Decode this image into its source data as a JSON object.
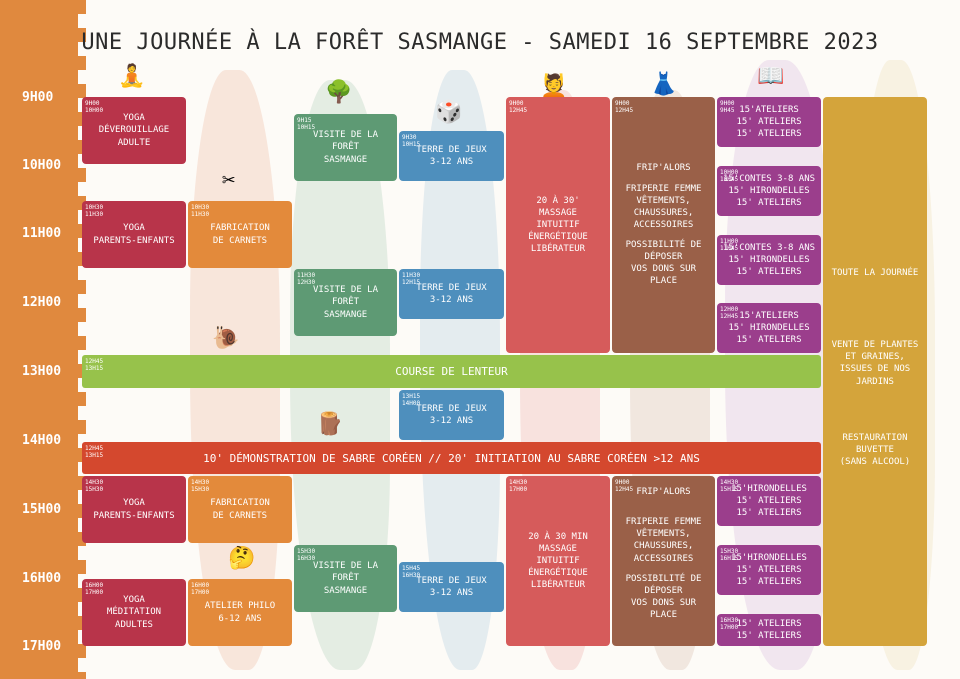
{
  "title": "UNE JOURNÉE À LA FORÊT SASMANGE - SAMEDI 16 SEPTEMBRE 2023",
  "hours": [
    "9H00",
    "10H00",
    "11H00",
    "12H00",
    "13H00",
    "14H00",
    "15H00",
    "16H00",
    "17H00"
  ],
  "activities": {
    "yoga1": {
      "time": "9H00\n10H00",
      "label": "YOGA\nDÉVEROUILLAGE\nADULTE"
    },
    "yoga2": {
      "time": "10H30\n11H30",
      "label": "YOGA\nPARENTS-ENFANTS"
    },
    "fab1": {
      "time": "10H30\n11H30",
      "label": "FABRICATION\nDE CARNETS"
    },
    "visite1": {
      "time": "9H15\n10H15",
      "label": "VISITE DE LA\nFORÊT\nSASMANGE"
    },
    "terre1": {
      "time": "9H30\n10H15",
      "label": "TERRE DE JEUX\n3-12 ANS"
    },
    "massage1": {
      "time": "9H00\n12H45",
      "label": "20 À 30'\nMASSAGE\nINTUITIF\nÉNERGÉTIQUE\nLIBÉRATEUR"
    },
    "frip1": {
      "time": "9H00\n12H45",
      "title": "FRIP'ALORS",
      "desc": "FRIPERIE FEMME\nVÊTEMENTS,\nCHAUSSURES,\nACCESSOIRES",
      "note": "POSSIBILITÉ DE DÉPOSER\nVOS DONS SUR PLACE"
    },
    "atel1": {
      "time": "9H00\n9H45",
      "label": "15'ATELIERS\n15' ATELIERS\n15' ATELIERS"
    },
    "atel2": {
      "time": "10H00\n10H45",
      "label": "15'CONTES 3-8 ANS\n15' HIRONDELLES\n15' ATELIERS"
    },
    "atel3": {
      "time": "11H00\n11H45",
      "label": "15'CONTES 3-8 ANS\n15' HIRONDELLES\n15' ATELIERS"
    },
    "atel4": {
      "time": "12H00\n12H45",
      "label": "15'ATELIERS\n15' HIRONDELLES\n15' ATELIERS"
    },
    "visite2": {
      "time": "11H30\n12H30",
      "label": "VISITE DE LA\nFORÊT\nSASMANGE"
    },
    "terre2": {
      "time": "11H30\n12H15",
      "label": "TERRE DE JEUX\n3-12 ANS"
    },
    "course": {
      "time": "12H45\n13H15",
      "label": "COURSE DE LENTEUR"
    },
    "terre3": {
      "time": "13H15\n14H00",
      "label": "TERRE DE JEUX\n3-12 ANS"
    },
    "sabre": {
      "time": "12H45\n13H15",
      "label": "10' DÉMONSTRATION DE SABRE CORÉEN // 20' INITIATION AU SABRE CORÉEN >12 ANS"
    },
    "yoga3": {
      "time": "14H30\n15H30",
      "label": "YOGA\nPARENTS-ENFANTS"
    },
    "fab2": {
      "time": "14H30\n15H30",
      "label": "FABRICATION\nDE CARNETS"
    },
    "massage2": {
      "time": "14H30\n17H00",
      "label": "20 À 30 MIN\nMASSAGE\nINTUITIF\nÉNERGÉTIQUE\nLIBÉRATEUR"
    },
    "frip2": {
      "time": "9H00\n12H45",
      "title": "FRIP'ALORS",
      "desc": "FRIPERIE FEMME\nVÊTEMENTS,\nCHAUSSURES,\nACCESSOIRES",
      "note": "POSSIBILITÉ DE DÉPOSER\nVOS DONS SUR PLACE"
    },
    "atel5": {
      "time": "14H30\n15H15",
      "label": "15'HIRONDELLES\n15' ATELIERS\n15' ATELIERS"
    },
    "atel6": {
      "time": "15H30\n16H15",
      "label": "15'HIRONDELLES\n15' ATELIERS\n15' ATELIERS"
    },
    "atel7": {
      "time": "16H30\n17H00",
      "label": "15' ATELIERS\n15' ATELIERS"
    },
    "visite3": {
      "time": "15H30\n16H30",
      "label": "VISITE DE LA\nFORÊT\nSASMANGE"
    },
    "terre4": {
      "time": "15H45\n16H30",
      "label": "TERRE DE JEUX\n3-12 ANS"
    },
    "yoga4": {
      "time": "16H00\n17H00",
      "label": "YOGA\nMÉDITATION\nADULTES"
    },
    "philo": {
      "time": "16H00\n17H00",
      "label": "ATELIER PHILO\n6-12 ANS"
    }
  },
  "sidebar": {
    "allday": "TOUTE LA JOURNÉE",
    "plants": "VENTE DE PLANTES\nET GRAINES,\nISSUES DE NOS JARDINS",
    "food": "RESTAURATION\nBUVETTE\n(SANS ALCOOL)"
  },
  "colors": {
    "red": "#b8344a",
    "orange": "#e38a3b",
    "green": "#5e9a74",
    "blue": "#4e8fbd",
    "salmon": "#d65b5b",
    "brown": "#9a6048",
    "purple": "#9b3e8c",
    "lime": "#97c24b",
    "bandred": "#d4482e",
    "gold": "#d4a43b"
  },
  "icons": [
    "yoga-icon",
    "craft-icon",
    "tree-icon",
    "game-icon",
    "massage-icon",
    "dress-icon",
    "reading-icon",
    "snail-icon",
    "table-icon",
    "thinker-icon",
    "plant-icon",
    "restaurant-icon"
  ]
}
